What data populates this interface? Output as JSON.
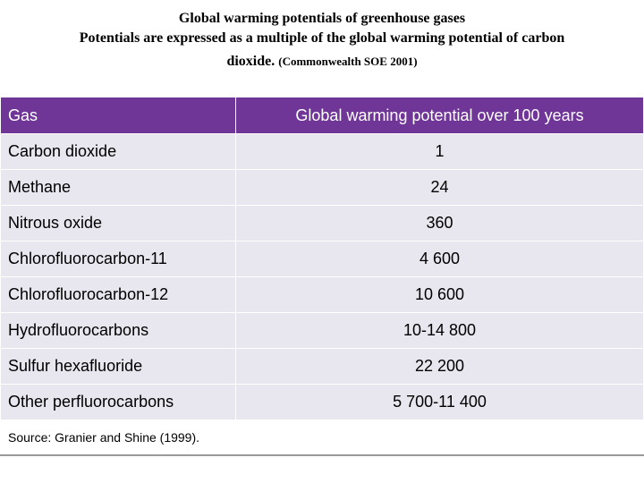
{
  "title": {
    "line1": "Global warming potentials of greenhouse gases",
    "line2": "Potentials are expressed as a multiple of the global warming potential of carbon",
    "line3": "dioxide.",
    "citation": "(Commonwealth SOE 2001)"
  },
  "table": {
    "headers": {
      "gas": "Gas",
      "gwp": "Global warming potential over 100 years"
    },
    "rows": [
      {
        "gas": "Carbon dioxide",
        "value": "1"
      },
      {
        "gas": "Methane",
        "value": "24"
      },
      {
        "gas": "Nitrous oxide",
        "value": "360"
      },
      {
        "gas": "Chlorofluorocarbon-11",
        "value": "4 600"
      },
      {
        "gas": "Chlorofluorocarbon-12",
        "value": "10 600"
      },
      {
        "gas": "Hydrofluorocarbons",
        "value": "10-14 800"
      },
      {
        "gas": "Sulfur hexafluoride",
        "value": "22 200"
      },
      {
        "gas": "Other perfluorocarbons",
        "value": "5 700-11 400"
      }
    ],
    "source": "Source: Granier and Shine (1999)."
  },
  "colors": {
    "header_bg": "#6f3597",
    "row_bg": "#e8e6ee"
  }
}
